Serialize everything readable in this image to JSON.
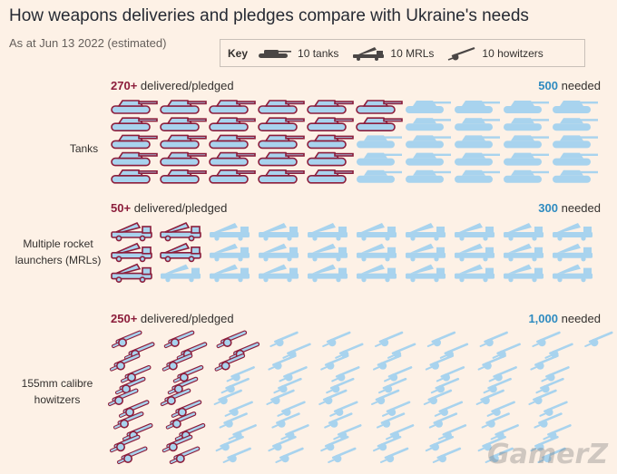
{
  "title": "How weapons deliveries and pledges compare with Ukraine's needs",
  "subtitle": "As at Jun 13 2022 (estimated)",
  "key": {
    "title": "Key",
    "items": [
      {
        "icon": "tank-icon",
        "label": "10 tanks"
      },
      {
        "icon": "mrl-icon",
        "label": "10 MRLs"
      },
      {
        "icon": "howitzer-icon",
        "label": "10 howitzers"
      }
    ]
  },
  "colors": {
    "delivered_fill": "#a8d3ee",
    "delivered_outline": "#8c1d3b",
    "needed_fill": "#a8d3ee",
    "key_icon": "#4a4645"
  },
  "watermark": "GamerZ",
  "chart_data": {
    "type": "pictogram",
    "unit_per_icon": 10,
    "sections": [
      {
        "id": "tanks",
        "label": "Tanks",
        "icon": "tank-icon",
        "delivered_value": "270+",
        "delivered_text": "delivered/pledged",
        "needed_value": "500",
        "needed_text": "needed",
        "delivered": 270,
        "needed": 500
      },
      {
        "id": "mrls",
        "label": "Multiple rocket launchers (MRLs)",
        "icon": "mrl-icon",
        "delivered_value": "50+",
        "delivered_text": "delivered/pledged",
        "needed_value": "300",
        "needed_text": "needed",
        "delivered": 50,
        "needed": 300
      },
      {
        "id": "howitzers",
        "label": "155mm calibre howitzers",
        "icon": "howitzer-icon",
        "delivered_value": "250+",
        "delivered_text": "delivered/pledged",
        "needed_value": "1,000",
        "needed_text": "needed",
        "delivered": 250,
        "needed": 1000
      }
    ]
  }
}
